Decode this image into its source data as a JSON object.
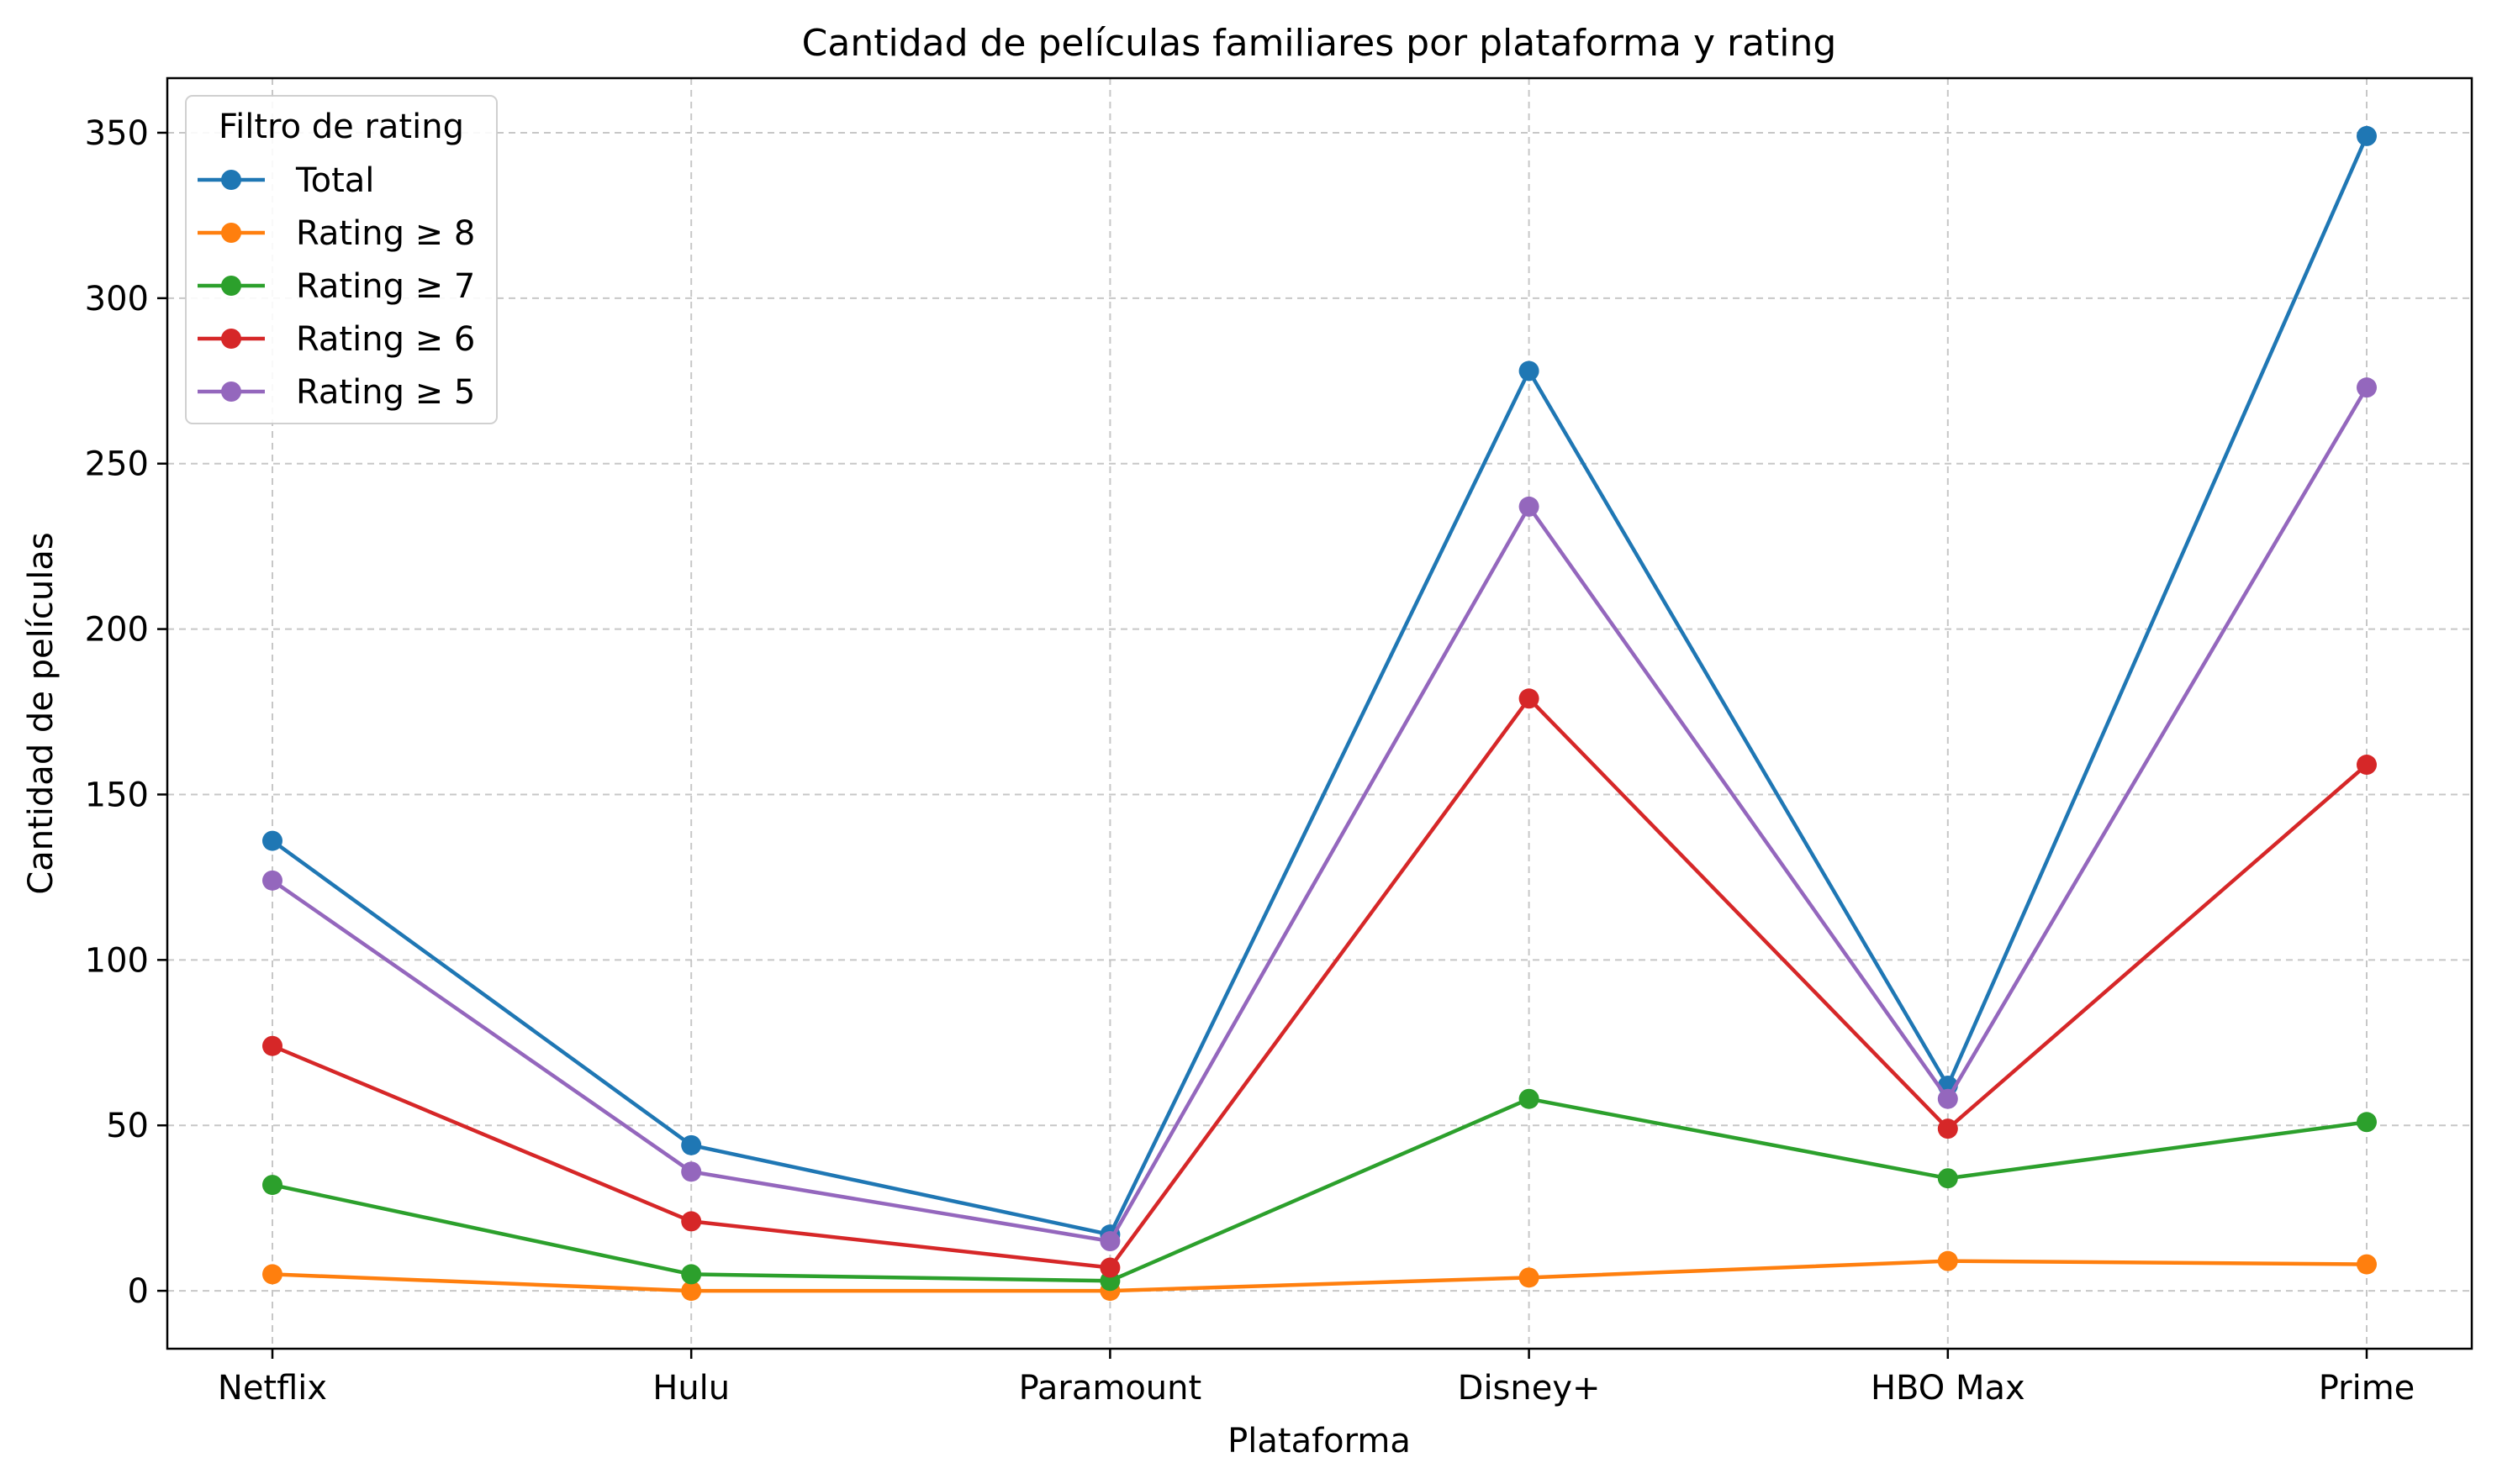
{
  "chart_data": {
    "type": "line",
    "title": "Cantidad de películas familiares por plataforma y rating",
    "xlabel": "Plataforma",
    "ylabel": "Cantidad de películas",
    "categories": [
      "Netflix",
      "Hulu",
      "Paramount",
      "Disney+",
      "HBO Max",
      "Prime"
    ],
    "ylim": [
      -17.5,
      366.5
    ],
    "yticks": [
      0,
      50,
      100,
      150,
      200,
      250,
      300,
      350
    ],
    "grid": true,
    "legend": {
      "title": "Filtro de rating",
      "placement": "top-left"
    },
    "series": [
      {
        "name": "Total",
        "color": "#1f77b4",
        "values": [
          136,
          44,
          17,
          278,
          62,
          349
        ]
      },
      {
        "name": "Rating ≥ 8",
        "color": "#ff7f0e",
        "values": [
          5,
          0,
          0,
          4,
          9,
          8
        ]
      },
      {
        "name": "Rating ≥ 7",
        "color": "#2ca02c",
        "values": [
          32,
          5,
          3,
          58,
          34,
          51
        ]
      },
      {
        "name": "Rating ≥ 6",
        "color": "#d62728",
        "values": [
          74,
          21,
          7,
          179,
          49,
          159
        ]
      },
      {
        "name": "Rating ≥ 5",
        "color": "#9467bd",
        "values": [
          124,
          36,
          15,
          237,
          58,
          273
        ]
      }
    ]
  }
}
